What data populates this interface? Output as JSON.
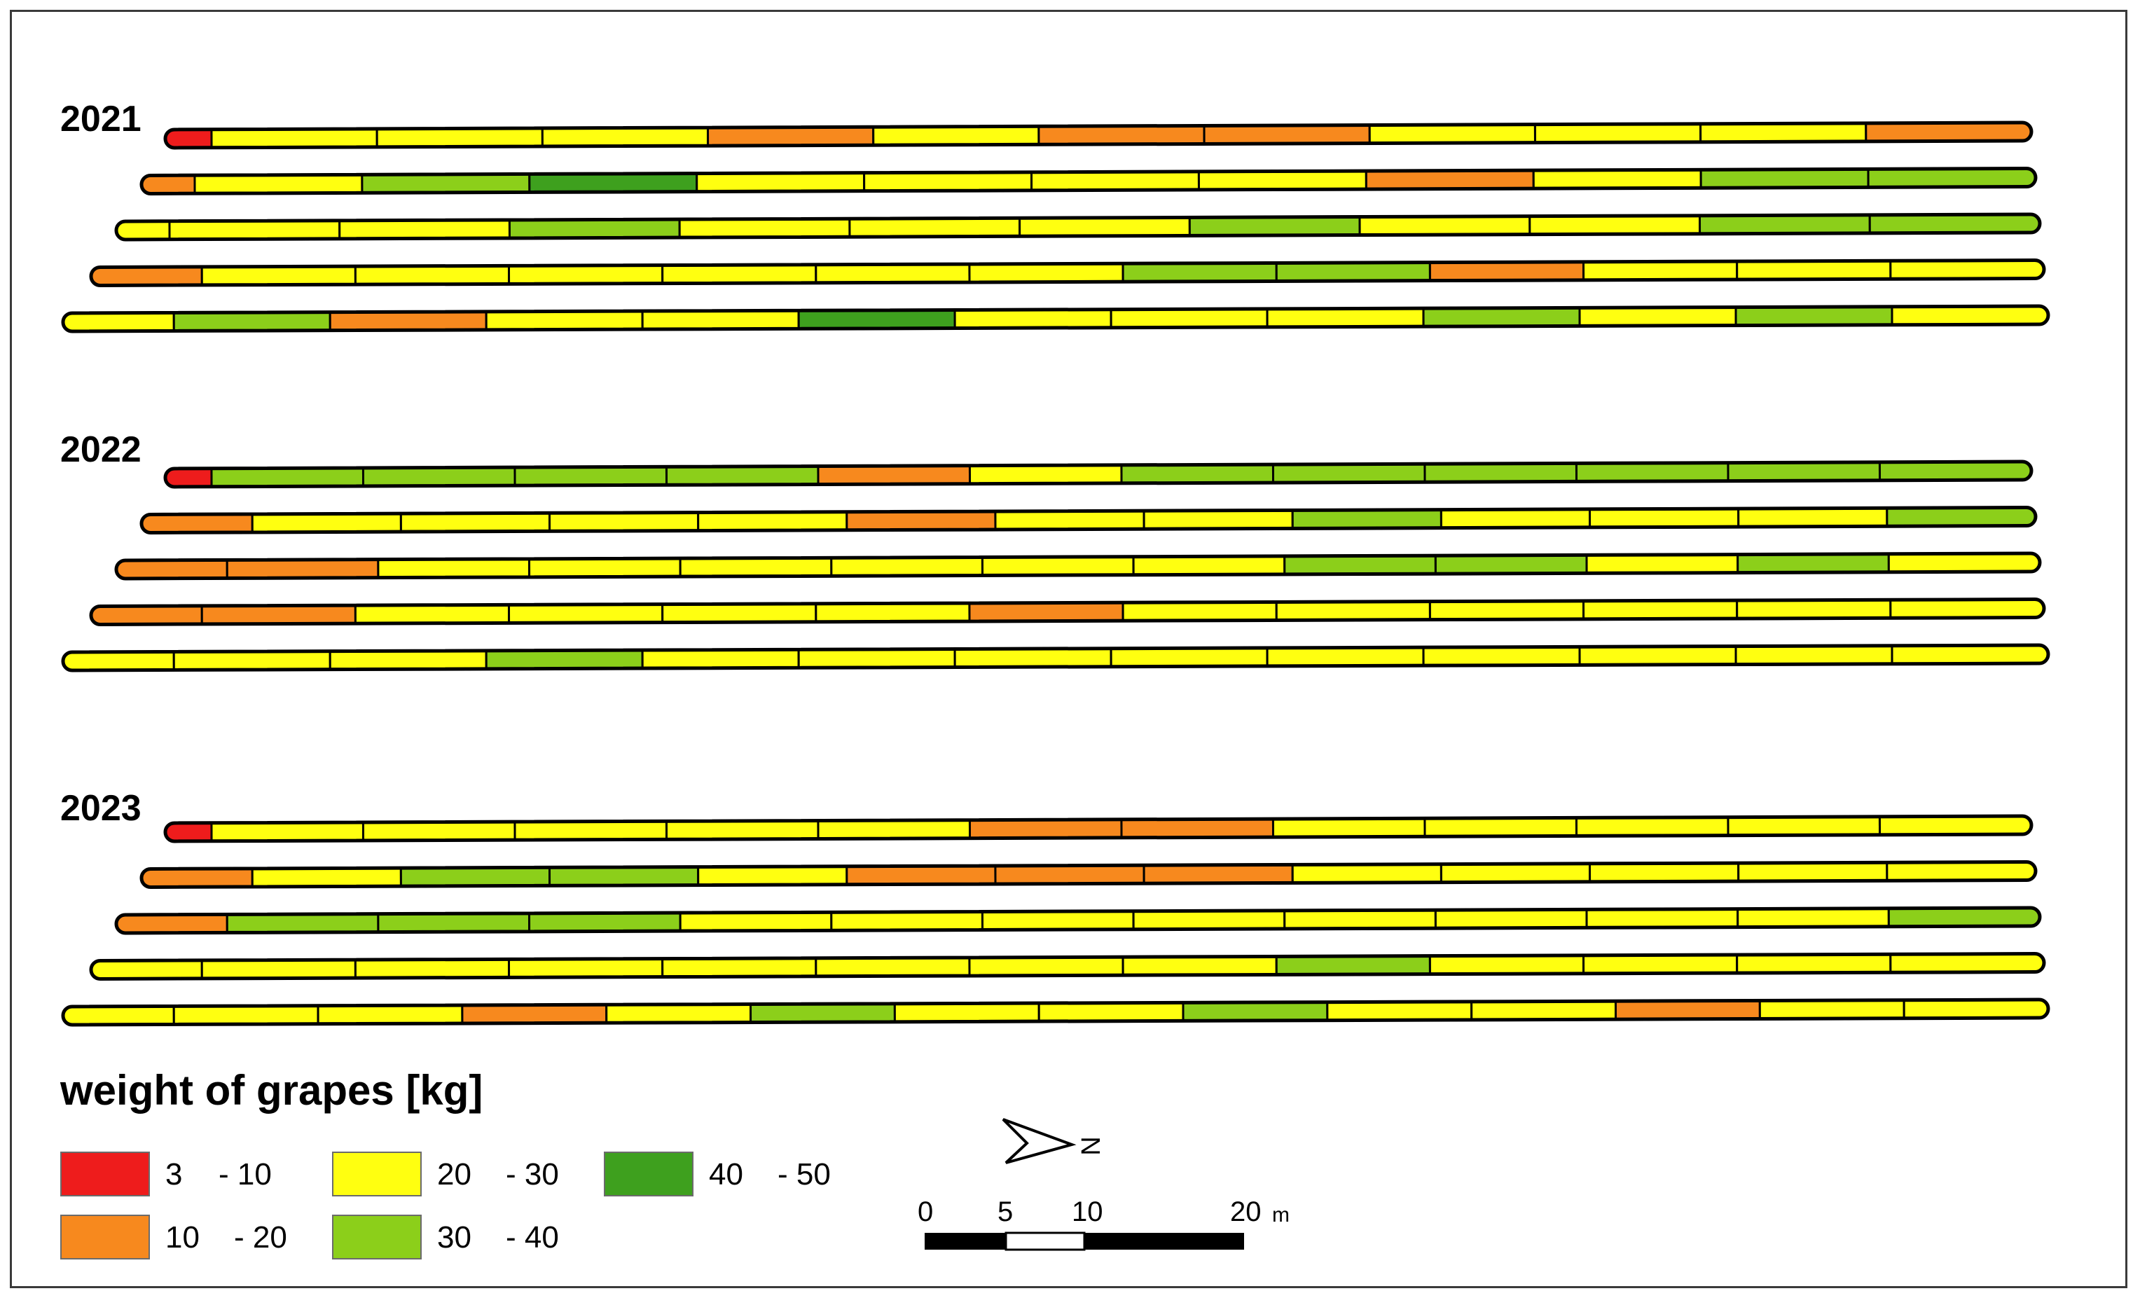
{
  "colors": {
    "r": "#ee1c1c",
    "o": "#f7891e",
    "y": "#ffff10",
    "l": "#8ccf1a",
    "g": "#3ea01e",
    "outline": "#000000"
  },
  "legend": {
    "title": "weight of grapes [kg]",
    "classes": [
      {
        "key": "r",
        "min": "3",
        "max": "- 10"
      },
      {
        "key": "o",
        "min": "10",
        "max": "- 20"
      },
      {
        "key": "y",
        "min": "20",
        "max": "- 30"
      },
      {
        "key": "l",
        "min": "30",
        "max": "- 40"
      },
      {
        "key": "g",
        "min": "40",
        "max": "- 50"
      }
    ]
  },
  "north_arrow": {
    "label": "N",
    "icon": "north-arrow-icon"
  },
  "scale_bar": {
    "ticks": [
      "0",
      "5",
      "10",
      "20"
    ],
    "unit": "m"
  },
  "years": [
    {
      "label": "2021",
      "rows": [
        [
          "r",
          "y",
          "y",
          "y",
          "o",
          "y",
          "o",
          "o",
          "y",
          "y",
          "y",
          "o"
        ],
        [
          "o",
          "y",
          "l",
          "g",
          "y",
          "y",
          "y",
          "y",
          "o",
          "y",
          "l",
          "l"
        ],
        [
          "y",
          "y",
          "y",
          "l",
          "y",
          "y",
          "y",
          "l",
          "y",
          "y",
          "l",
          "l"
        ],
        [
          "o",
          "y",
          "y",
          "y",
          "y",
          "y",
          "y",
          "l",
          "l",
          "o",
          "y",
          "y",
          "y"
        ],
        [
          "y",
          "l",
          "o",
          "y",
          "y",
          "g",
          "y",
          "y",
          "y",
          "l",
          "y",
          "l",
          "y"
        ]
      ]
    },
    {
      "label": "2022",
      "rows": [
        [
          "r",
          "l",
          "l",
          "l",
          "l",
          "o",
          "y",
          "l",
          "l",
          "l",
          "l",
          "l",
          "l"
        ],
        [
          "o",
          "y",
          "y",
          "y",
          "y",
          "o",
          "y",
          "y",
          "l",
          "y",
          "y",
          "y",
          "l"
        ],
        [
          "o",
          "o",
          "y",
          "y",
          "y",
          "y",
          "y",
          "y",
          "l",
          "l",
          "y",
          "l",
          "y"
        ],
        [
          "o",
          "o",
          "y",
          "y",
          "y",
          "y",
          "o",
          "y",
          "y",
          "y",
          "y",
          "y",
          "y"
        ],
        [
          "y",
          "y",
          "y",
          "l",
          "y",
          "y",
          "y",
          "y",
          "y",
          "y",
          "y",
          "y",
          "y"
        ]
      ]
    },
    {
      "label": "2023",
      "rows": [
        [
          "r",
          "y",
          "y",
          "y",
          "y",
          "y",
          "o",
          "o",
          "y",
          "y",
          "y",
          "y",
          "y"
        ],
        [
          "o",
          "y",
          "l",
          "l",
          "y",
          "o",
          "o",
          "o",
          "y",
          "y",
          "y",
          "y",
          "y"
        ],
        [
          "o",
          "l",
          "l",
          "l",
          "y",
          "y",
          "y",
          "y",
          "y",
          "y",
          "y",
          "y",
          "l"
        ],
        [
          "y",
          "y",
          "y",
          "y",
          "y",
          "y",
          "y",
          "y",
          "l",
          "y",
          "y",
          "y",
          "y"
        ],
        [
          "y",
          "y",
          "y",
          "o",
          "y",
          "l",
          "y",
          "y",
          "l",
          "y",
          "y",
          "o",
          "y",
          "y"
        ]
      ]
    }
  ]
}
